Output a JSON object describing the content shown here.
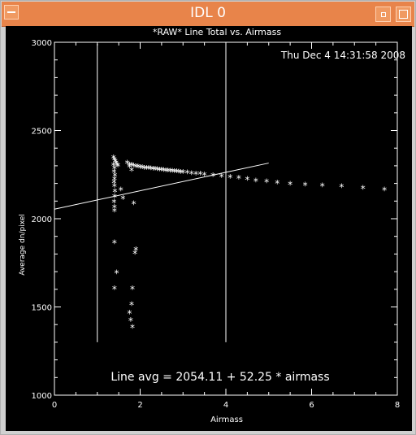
{
  "window": {
    "title": "IDL 0"
  },
  "plot": {
    "title": "*RAW* Line Total vs. Airmass",
    "timestamp": "Thu Dec  4 14:31:58 2008",
    "annotation": "Line avg = 2054.11 + 52.25 * airmass",
    "colors": {
      "background": "#000000",
      "foreground": "#ffffff",
      "titlebar": "#e8844a"
    }
  },
  "chart_data": {
    "type": "scatter",
    "title": "*RAW* Line Total vs. Airmass",
    "xlabel": "Airmass",
    "ylabel": "Average dn/pixel",
    "xlim": [
      0,
      8
    ],
    "ylim": [
      1000,
      3000
    ],
    "x_ticks": [
      0,
      2,
      4,
      6,
      8
    ],
    "y_ticks": [
      1000,
      1500,
      2000,
      2500,
      3000
    ],
    "marker": "asterisk",
    "grid": false,
    "vertical_lines": [
      1.0,
      4.0
    ],
    "fit_line": {
      "intercept": 2054.11,
      "slope": 52.25,
      "x_range": [
        0,
        5
      ]
    },
    "points": [
      [
        1.38,
        2340
      ],
      [
        1.4,
        2330
      ],
      [
        1.42,
        2320
      ],
      [
        1.44,
        2310
      ],
      [
        1.46,
        2300
      ],
      [
        1.48,
        2295
      ],
      [
        1.38,
        2300
      ],
      [
        1.4,
        2280
      ],
      [
        1.39,
        2260
      ],
      [
        1.41,
        2240
      ],
      [
        1.4,
        2220
      ],
      [
        1.39,
        2200
      ],
      [
        1.4,
        2180
      ],
      [
        1.41,
        2150
      ],
      [
        1.4,
        2120
      ],
      [
        1.39,
        2090
      ],
      [
        1.4,
        2060
      ],
      [
        1.4,
        2040
      ],
      [
        1.55,
        2160
      ],
      [
        1.6,
        2110
      ],
      [
        1.75,
        2290
      ],
      [
        1.8,
        2270
      ],
      [
        1.85,
        2080
      ],
      [
        1.7,
        2310
      ],
      [
        1.75,
        2300
      ],
      [
        1.8,
        2300
      ],
      [
        1.85,
        2295
      ],
      [
        1.9,
        2290
      ],
      [
        1.95,
        2290
      ],
      [
        2.0,
        2285
      ],
      [
        2.05,
        2285
      ],
      [
        2.1,
        2280
      ],
      [
        2.15,
        2280
      ],
      [
        2.2,
        2280
      ],
      [
        2.25,
        2278
      ],
      [
        2.3,
        2277
      ],
      [
        2.35,
        2276
      ],
      [
        2.4,
        2275
      ],
      [
        2.45,
        2273
      ],
      [
        2.5,
        2272
      ],
      [
        2.55,
        2270
      ],
      [
        2.6,
        2268
      ],
      [
        2.65,
        2267
      ],
      [
        2.7,
        2266
      ],
      [
        2.75,
        2265
      ],
      [
        2.8,
        2263
      ],
      [
        2.85,
        2262
      ],
      [
        2.9,
        2260
      ],
      [
        2.95,
        2258
      ],
      [
        3.0,
        2257
      ],
      [
        3.1,
        2255
      ],
      [
        3.2,
        2252
      ],
      [
        3.3,
        2250
      ],
      [
        3.4,
        2248
      ],
      [
        3.5,
        2245
      ],
      [
        3.7,
        2240
      ],
      [
        3.9,
        2235
      ],
      [
        4.1,
        2230
      ],
      [
        4.3,
        2225
      ],
      [
        4.5,
        2220
      ],
      [
        4.7,
        2210
      ],
      [
        4.95,
        2205
      ],
      [
        5.2,
        2198
      ],
      [
        5.5,
        2192
      ],
      [
        5.85,
        2187
      ],
      [
        6.25,
        2182
      ],
      [
        6.7,
        2177
      ],
      [
        7.2,
        2168
      ],
      [
        7.7,
        2158
      ],
      [
        1.4,
        1860
      ],
      [
        1.45,
        1690
      ],
      [
        1.4,
        1600
      ],
      [
        1.9,
        1820
      ],
      [
        1.88,
        1800
      ],
      [
        1.82,
        1600
      ],
      [
        1.8,
        1510
      ],
      [
        1.75,
        1460
      ],
      [
        1.78,
        1420
      ],
      [
        1.82,
        1380
      ]
    ]
  }
}
